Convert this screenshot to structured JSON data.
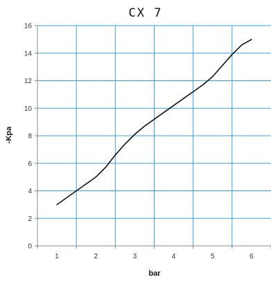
{
  "chart_data": {
    "type": "line",
    "title": "CX 7",
    "xlabel": "bar",
    "ylabel": "-Kpa",
    "xlim": [
      0.5,
      6.5
    ],
    "ylim": [
      0,
      16
    ],
    "x_ticks": [
      1,
      2,
      3,
      4,
      5,
      6
    ],
    "y_ticks": [
      0,
      2,
      4,
      6,
      8,
      10,
      12,
      14,
      16
    ],
    "grid": true,
    "grid_color": "#3aa0d8",
    "line_color": "#111111",
    "series": [
      {
        "x": [
          1,
          1.5,
          2,
          2.25,
          2.5,
          2.75,
          3,
          3.25,
          3.5,
          3.75,
          4,
          4.25,
          4.5,
          4.75,
          5,
          5.25,
          5.5,
          5.75,
          6
        ],
        "y": [
          3,
          4,
          5,
          5.7,
          6.6,
          7.4,
          8.1,
          8.7,
          9.2,
          9.7,
          10.2,
          10.7,
          11.2,
          11.7,
          12.3,
          13.1,
          13.9,
          14.6,
          15
        ]
      }
    ]
  }
}
